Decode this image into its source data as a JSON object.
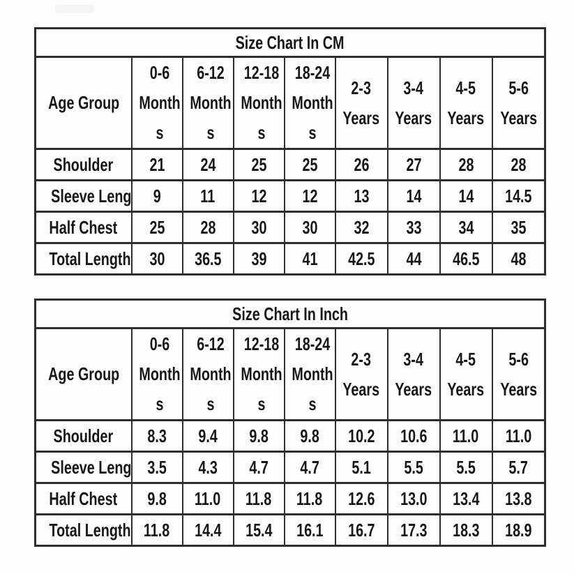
{
  "theme": {
    "background": "#fdfdfd",
    "border_color": "#2e2e2e",
    "text_color": "#171717",
    "badge_color": "#f5f5f5"
  },
  "tables": [
    {
      "unit": "cm",
      "title": "Size Chart In CM",
      "corner_header": "Age Group",
      "columns": [
        {
          "label": "0-6 Months",
          "lines": [
            "0-6",
            "Month",
            "s"
          ]
        },
        {
          "label": "6-12 Months",
          "lines": [
            "6-12",
            "Month",
            "s"
          ]
        },
        {
          "label": "12-18 Months",
          "lines": [
            "12-18",
            "Month",
            "s"
          ]
        },
        {
          "label": "18-24 Months",
          "lines": [
            "18-24",
            "Month",
            "s"
          ]
        },
        {
          "label": "2-3 Years",
          "lines": [
            "2-3",
            "Years"
          ]
        },
        {
          "label": "3-4 Years",
          "lines": [
            "3-4",
            "Years"
          ]
        },
        {
          "label": "4-5 Years",
          "lines": [
            "4-5",
            "Years"
          ]
        },
        {
          "label": "5-6 Years",
          "lines": [
            "5-6",
            "Years"
          ]
        }
      ],
      "rows": [
        {
          "label": "Shoulder",
          "values": [
            "21",
            "24",
            "25",
            "25",
            "26",
            "27",
            "28",
            "28"
          ]
        },
        {
          "label": "Sleeve Length",
          "values": [
            "9",
            "11",
            "12",
            "12",
            "13",
            "14",
            "14",
            "14.5"
          ]
        },
        {
          "label": "Half Chest",
          "values": [
            "25",
            "28",
            "30",
            "30",
            "32",
            "33",
            "34",
            "35"
          ]
        },
        {
          "label": "Total Length",
          "values": [
            "30",
            "36.5",
            "39",
            "41",
            "42.5",
            "44",
            "46.5",
            "48"
          ]
        }
      ]
    },
    {
      "unit": "inch",
      "title": "Size Chart In Inch",
      "corner_header": "Age Group",
      "columns": [
        {
          "label": "0-6 Months",
          "lines": [
            "0-6",
            "Month",
            "s"
          ]
        },
        {
          "label": "6-12 Months",
          "lines": [
            "6-12",
            "Month",
            "s"
          ]
        },
        {
          "label": "12-18 Months",
          "lines": [
            "12-18",
            "Month",
            "s"
          ]
        },
        {
          "label": "18-24 Months",
          "lines": [
            "18-24",
            "Month",
            "s"
          ]
        },
        {
          "label": "2-3 Years",
          "lines": [
            "2-3",
            "Years"
          ]
        },
        {
          "label": "3-4 Years",
          "lines": [
            "3-4",
            "Years"
          ]
        },
        {
          "label": "4-5 Years",
          "lines": [
            "4-5",
            "Years"
          ]
        },
        {
          "label": "5-6 Years",
          "lines": [
            "5-6",
            "Years"
          ]
        }
      ],
      "rows": [
        {
          "label": "Shoulder",
          "values": [
            "8.3",
            "9.4",
            "9.8",
            "9.8",
            "10.2",
            "10.6",
            "11.0",
            "11.0"
          ]
        },
        {
          "label": "Sleeve Length",
          "values": [
            "3.5",
            "4.3",
            "4.7",
            "4.7",
            "5.1",
            "5.5",
            "5.5",
            "5.7"
          ]
        },
        {
          "label": "Half Chest",
          "values": [
            "9.8",
            "11.0",
            "11.8",
            "11.8",
            "12.6",
            "13.0",
            "13.4",
            "13.8"
          ]
        },
        {
          "label": "Total Length",
          "values": [
            "11.8",
            "14.4",
            "15.4",
            "16.1",
            "16.7",
            "17.3",
            "18.3",
            "18.9"
          ]
        }
      ]
    }
  ]
}
